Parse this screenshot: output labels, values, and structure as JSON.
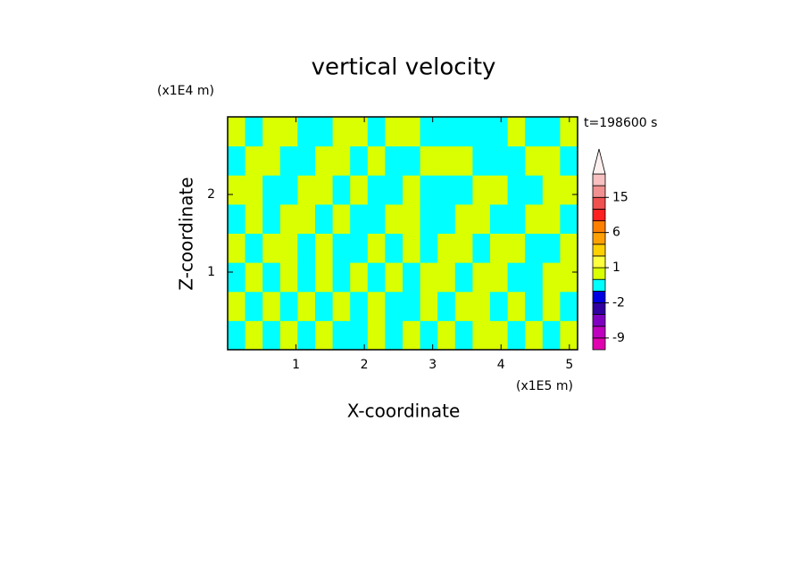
{
  "chart_data": {
    "type": "contour",
    "title": "vertical velocity",
    "xlabel": "X-coordinate",
    "ylabel": "Z-coordinate",
    "x_unit": "(x1E5 m)",
    "y_unit": "(x1E4 m)",
    "time_label": "t=198600 s",
    "xlim": [
      0,
      5.12
    ],
    "ylim": [
      0,
      3
    ],
    "xticks": [
      1,
      2,
      3,
      4,
      5
    ],
    "yticks": [
      1,
      2
    ],
    "z": [
      [
        -0.5,
        0.5,
        -0.5,
        0.5,
        -0.5,
        0.5,
        -0.5,
        -0.5,
        0.5,
        -0.5,
        0.5,
        -0.5,
        0.5,
        -0.5,
        0.5,
        0.5,
        -0.5,
        0.5,
        -0.5,
        0.5
      ],
      [
        0.5,
        -0.5,
        0.5,
        -0.5,
        0.5,
        -0.5,
        0.5,
        -0.5,
        0.5,
        -0.5,
        -0.5,
        0.5,
        -0.5,
        0.5,
        0.5,
        -0.5,
        0.5,
        -0.5,
        0.5,
        -0.5
      ],
      [
        -0.5,
        0.5,
        -0.5,
        0.5,
        -0.5,
        0.5,
        -0.5,
        0.5,
        -0.5,
        0.5,
        -0.5,
        0.5,
        0.5,
        -0.5,
        0.5,
        0.5,
        -0.5,
        -0.5,
        0.5,
        0.5
      ],
      [
        0.5,
        -0.5,
        0.5,
        0.5,
        -0.5,
        0.5,
        -0.5,
        -0.5,
        0.5,
        -0.5,
        0.5,
        -0.5,
        0.5,
        0.5,
        -0.5,
        0.5,
        0.5,
        -0.5,
        -0.5,
        0.5
      ],
      [
        -0.5,
        0.5,
        -0.5,
        0.5,
        0.5,
        -0.5,
        0.5,
        -0.5,
        -0.5,
        0.5,
        0.5,
        -0.5,
        -0.5,
        0.5,
        0.5,
        -0.5,
        -0.5,
        0.5,
        0.5,
        -0.5
      ],
      [
        0.5,
        0.5,
        -0.5,
        -0.5,
        0.5,
        0.5,
        -0.5,
        0.5,
        -0.5,
        -0.5,
        0.5,
        -0.5,
        -0.5,
        -0.5,
        0.5,
        0.5,
        -0.5,
        -0.5,
        0.5,
        0.5
      ],
      [
        -0.5,
        0.5,
        0.5,
        -0.5,
        -0.5,
        0.5,
        0.5,
        -0.5,
        0.5,
        -0.5,
        -0.5,
        0.5,
        0.5,
        0.5,
        -0.5,
        -0.5,
        -0.5,
        0.5,
        0.5,
        -0.5
      ],
      [
        0.5,
        -0.5,
        0.5,
        0.5,
        -0.5,
        -0.5,
        0.5,
        0.5,
        -0.5,
        0.5,
        0.5,
        -0.5,
        -0.5,
        -0.5,
        -0.5,
        -0.5,
        0.5,
        -0.5,
        -0.5,
        0.5
      ]
    ],
    "colorbar": {
      "levels": [
        -12,
        -9,
        -6,
        -3,
        -2,
        -1,
        0,
        1,
        2,
        3,
        6,
        9,
        12,
        15,
        18,
        21
      ],
      "colors": [
        "#e000b0",
        "#c000c0",
        "#8000c0",
        "#3000a0",
        "#0000e0",
        "#00ffff",
        "#d9ff00",
        "#ffff40",
        "#ffd000",
        "#ffa000",
        "#ff8000",
        "#ff2020",
        "#f05050",
        "#f09090",
        "#f8c0c0"
      ],
      "extend_color": "#fff0f0",
      "ticks": [
        -9,
        -2,
        1,
        6,
        15
      ]
    }
  }
}
